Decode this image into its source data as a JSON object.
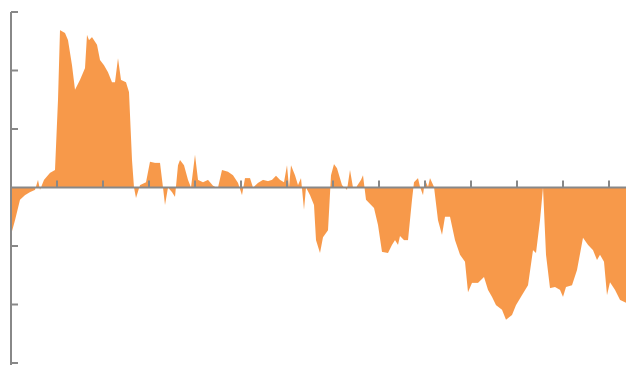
{
  "chart_data": {
    "type": "area",
    "color": "#f7994a",
    "x": [
      0,
      4,
      9,
      14,
      19,
      24,
      27,
      29,
      33,
      39,
      44,
      47,
      49,
      54,
      57,
      61,
      64,
      69,
      74,
      76,
      78,
      81,
      86,
      89,
      93,
      97,
      101,
      104,
      107,
      110,
      115,
      118,
      121,
      123,
      125,
      129,
      135,
      139,
      144,
      149,
      152,
      154,
      157,
      161,
      164,
      167,
      169,
      173,
      177,
      180,
      184,
      187,
      192,
      197,
      202,
      207,
      211,
      217,
      222,
      227,
      231,
      234,
      239,
      242,
      247,
      252,
      257,
      261,
      265,
      269,
      273,
      276,
      278,
      280,
      284,
      287,
      290,
      293,
      295,
      299,
      303,
      305,
      309,
      312,
      317,
      320,
      323,
      326,
      331,
      336,
      339,
      342,
      345,
      350,
      352,
      355,
      363,
      367,
      371,
      377,
      381,
      384,
      387,
      389,
      393,
      397,
      401,
      403,
      407,
      409,
      412,
      414,
      417,
      419,
      423,
      427,
      431,
      434,
      439,
      444,
      449,
      454,
      457,
      461,
      467,
      473,
      477,
      481,
      485,
      491,
      495,
      501,
      505,
      511,
      517,
      522,
      525,
      529,
      532,
      535,
      539,
      544,
      549,
      552,
      555,
      561,
      566,
      572,
      577,
      582,
      586,
      589,
      593,
      596,
      599,
      604,
      609,
      615
    ],
    "values": [
      -0.81,
      -0.56,
      -0.21,
      -0.13,
      -0.08,
      -0.04,
      0.13,
      -0.04,
      0.13,
      0.25,
      0.3,
      1.5,
      2.69,
      2.64,
      2.52,
      2.09,
      1.67,
      1.84,
      2.04,
      2.61,
      2.52,
      2.57,
      2.44,
      2.18,
      2.09,
      1.97,
      1.8,
      1.8,
      2.21,
      1.84,
      1.8,
      1.63,
      0.47,
      0,
      -0.18,
      0.04,
      0.09,
      0.44,
      0.42,
      0.42,
      0,
      -0.3,
      0,
      -0.08,
      -0.16,
      0.38,
      0.47,
      0.38,
      0.13,
      0,
      0.56,
      0.13,
      0.09,
      0.13,
      0.03,
      0,
      0.3,
      0.27,
      0.21,
      0.08,
      -0.13,
      0.16,
      0.16,
      0,
      0.08,
      0.13,
      0.11,
      0.13,
      0.2,
      0.13,
      0.09,
      0.38,
      0,
      0.38,
      0.21,
      0.04,
      0.16,
      -0.38,
      0,
      -0.13,
      -0.3,
      -0.9,
      -1.12,
      -0.85,
      -0.73,
      0.21,
      0.4,
      0.33,
      0.04,
      -0.04,
      0.3,
      0,
      0,
      0.13,
      0.21,
      -0.21,
      -0.35,
      -0.64,
      -1.1,
      -1.12,
      -0.98,
      -0.9,
      -0.98,
      -0.83,
      -0.9,
      -0.9,
      -0.21,
      0.09,
      0.16,
      0.01,
      -0.13,
      0.13,
      0.01,
      0.16,
      0.01,
      -0.56,
      -0.81,
      -0.5,
      -0.5,
      -0.9,
      -1.15,
      -1.27,
      -1.79,
      -1.63,
      -1.63,
      -1.53,
      -1.75,
      -1.87,
      -2.01,
      -2.09,
      -2.26,
      -2.18,
      -2.01,
      -1.84,
      -1.67,
      -1.07,
      -1.12,
      -0.56,
      0,
      -1.15,
      -1.72,
      -1.7,
      -1.75,
      -1.87,
      -1.7,
      -1.67,
      -1.41,
      -0.86,
      -0.98,
      -1.07,
      -1.24,
      -1.15,
      -1.27,
      -1.84,
      -1.62,
      -1.75,
      -1.92,
      -1.97
    ],
    "xlim": [
      0,
      615
    ],
    "xticks": [
      46,
      92,
      138,
      184,
      230,
      276,
      322,
      368,
      414,
      460,
      506,
      552,
      598
    ],
    "ylim": [
      -3,
      3
    ],
    "yticks": [
      -3,
      -2,
      -1,
      0,
      1,
      2,
      3
    ]
  }
}
